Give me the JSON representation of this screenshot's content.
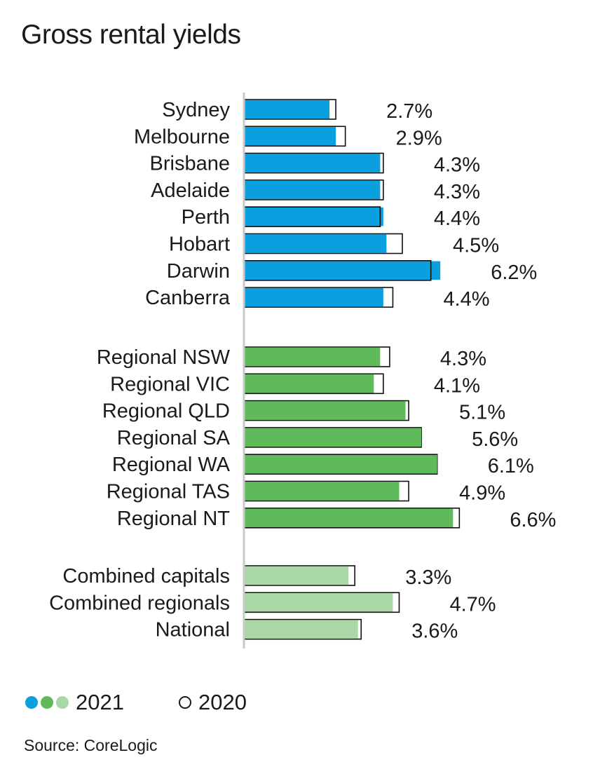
{
  "title": "Gross rental yields",
  "legend": {
    "label_2021": "2021",
    "label_2020": "2020",
    "colors_2021": [
      "#0aa0e0",
      "#5fbb5a",
      "#a9d8a6"
    ]
  },
  "source": "Source: CoreLogic",
  "colors": {
    "capitals": "#0aa0e0",
    "regional": "#5fbb5a",
    "combined": "#a9d8a6",
    "outline_2020": "#111111"
  },
  "chart_data": {
    "type": "bar",
    "orientation": "horizontal",
    "title": "Gross rental yields",
    "series": [
      {
        "name": "2021"
      },
      {
        "name": "2020"
      }
    ],
    "groups": [
      {
        "color": "#0aa0e0",
        "items": [
          {
            "category": "Sydney",
            "value_2021": 2.7,
            "value_2020": 2.9,
            "label": "2.7%"
          },
          {
            "category": "Melbourne",
            "value_2021": 2.9,
            "value_2020": 3.2,
            "label": "2.9%"
          },
          {
            "category": "Brisbane",
            "value_2021": 4.3,
            "value_2020": 4.4,
            "label": "4.3%"
          },
          {
            "category": "Adelaide",
            "value_2021": 4.3,
            "value_2020": 4.4,
            "label": "4.3%"
          },
          {
            "category": "Perth",
            "value_2021": 4.4,
            "value_2020": 4.3,
            "label": "4.4%"
          },
          {
            "category": "Hobart",
            "value_2021": 4.5,
            "value_2020": 5.0,
            "label": "4.5%"
          },
          {
            "category": "Darwin",
            "value_2021": 6.2,
            "value_2020": 5.9,
            "label": "6.2%"
          },
          {
            "category": "Canberra",
            "value_2021": 4.4,
            "value_2020": 4.7,
            "label": "4.4%"
          }
        ]
      },
      {
        "color": "#5fbb5a",
        "items": [
          {
            "category": "Regional NSW",
            "value_2021": 4.3,
            "value_2020": 4.6,
            "label": "4.3%"
          },
          {
            "category": "Regional VIC",
            "value_2021": 4.1,
            "value_2020": 4.4,
            "label": "4.1%"
          },
          {
            "category": "Regional QLD",
            "value_2021": 5.1,
            "value_2020": 5.2,
            "label": "5.1%"
          },
          {
            "category": "Regional SA",
            "value_2021": 5.6,
            "value_2020": 5.6,
            "label": "5.6%"
          },
          {
            "category": "Regional WA",
            "value_2021": 6.1,
            "value_2020": 6.1,
            "label": "6.1%"
          },
          {
            "category": "Regional TAS",
            "value_2021": 4.9,
            "value_2020": 5.2,
            "label": "4.9%"
          },
          {
            "category": "Regional NT",
            "value_2021": 6.6,
            "value_2020": 6.8,
            "label": "6.6%"
          }
        ]
      },
      {
        "color": "#a9d8a6",
        "items": [
          {
            "category": "Combined capitals",
            "value_2021": 3.3,
            "value_2020": 3.5,
            "label": "3.3%"
          },
          {
            "category": "Combined regionals",
            "value_2021": 4.7,
            "value_2020": 4.9,
            "label": "4.7%"
          },
          {
            "category": "National",
            "value_2021": 3.6,
            "value_2020": 3.7,
            "label": "3.6%"
          }
        ]
      }
    ],
    "xlim": [
      0,
      7
    ],
    "grid": false,
    "legend_position": "bottom-left"
  }
}
